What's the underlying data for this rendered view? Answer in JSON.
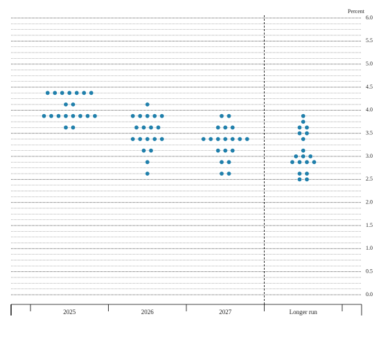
{
  "chart_data": {
    "type": "dot",
    "y_label": "Percent",
    "categories": [
      "2025",
      "2026",
      "2027",
      "Longer run"
    ],
    "values": [
      [
        4.375,
        4.375,
        4.375,
        4.375,
        4.375,
        4.375,
        4.375,
        4.125,
        4.125,
        3.875,
        3.875,
        3.875,
        3.875,
        3.875,
        3.875,
        3.875,
        3.875,
        3.625,
        3.625
      ],
      [
        4.125,
        3.875,
        3.875,
        3.875,
        3.875,
        3.875,
        3.625,
        3.625,
        3.625,
        3.625,
        3.375,
        3.375,
        3.375,
        3.375,
        3.375,
        3.125,
        3.125,
        2.875,
        2.625
      ],
      [
        3.875,
        3.875,
        3.625,
        3.625,
        3.625,
        3.375,
        3.375,
        3.375,
        3.375,
        3.375,
        3.375,
        3.375,
        3.125,
        3.125,
        3.125,
        2.875,
        2.875,
        2.625,
        2.625
      ],
      [
        3.875,
        3.75,
        3.625,
        3.625,
        3.5,
        3.5,
        3.375,
        3.125,
        3.0,
        3.0,
        3.0,
        2.875,
        2.875,
        2.875,
        2.875,
        2.625,
        2.625,
        2.5,
        2.5
      ]
    ],
    "color": "#1f7fab",
    "ylim": [
      0,
      6
    ],
    "yticks": [
      {
        "value": 0,
        "label": "0.0"
      },
      {
        "value": 0.5,
        "label": "0.5"
      },
      {
        "value": 1,
        "label": "1.0"
      },
      {
        "value": 1.5,
        "label": "1.5"
      },
      {
        "value": 2,
        "label": "2.0"
      },
      {
        "value": 2.5,
        "label": "2.5"
      },
      {
        "value": 3,
        "label": "3.0"
      },
      {
        "value": 3.5,
        "label": "3.5"
      },
      {
        "value": 4,
        "label": "4.0"
      },
      {
        "value": 4.5,
        "label": "4.5"
      },
      {
        "value": 5,
        "label": "5.0"
      },
      {
        "value": 5.5,
        "label": "5.5"
      },
      {
        "value": 6,
        "label": "6.0"
      }
    ],
    "grid": true
  }
}
